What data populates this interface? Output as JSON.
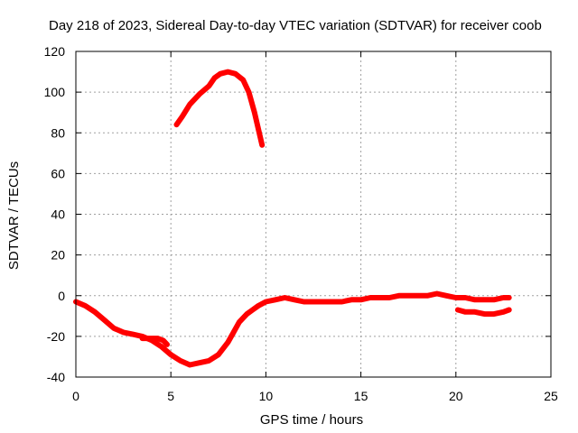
{
  "chart_data": {
    "type": "line",
    "title": "Day 218 of 2023, Sidereal Day-to-day VTEC variation (SDTVAR) for receiver coob",
    "xlabel": "GPS time / hours",
    "ylabel": "SDTVAR / TECUs",
    "xlim": [
      0,
      25
    ],
    "ylim": [
      -40,
      120
    ],
    "xticks": [
      0,
      5,
      10,
      15,
      20,
      25
    ],
    "yticks": [
      -40,
      -20,
      0,
      20,
      40,
      60,
      80,
      100,
      120
    ],
    "grid": true,
    "colors": {
      "series": "#ff0000"
    },
    "series": [
      {
        "name": "SDTVAR main track",
        "x": [
          0,
          0.5,
          1.0,
          1.5,
          2.0,
          2.5,
          3.0,
          3.5,
          4.0,
          4.5,
          5.0,
          5.5,
          6.0,
          6.5,
          7.0,
          7.5,
          8.0,
          8.3,
          8.6,
          9.0,
          9.3,
          9.6,
          10.0,
          10.5,
          11.0,
          11.5,
          12.0,
          12.5,
          13.0,
          13.5,
          14.0,
          14.5,
          15.0,
          15.5,
          16.0,
          16.5,
          17.0,
          17.5,
          18.0,
          18.5,
          19.0,
          19.5,
          20.0,
          20.5,
          21.0,
          21.5,
          22.0,
          22.5,
          22.8
        ],
        "y": [
          -3,
          -5,
          -8,
          -12,
          -16,
          -18,
          -19,
          -20,
          -22,
          -25,
          -29,
          -32,
          -34,
          -33,
          -32,
          -29,
          -23,
          -18,
          -13,
          -9,
          -7,
          -5,
          -3,
          -2,
          -1,
          -2,
          -3,
          -3,
          -3,
          -3,
          -3,
          -2,
          -2,
          -1,
          -1,
          -1,
          0,
          0,
          0,
          0,
          1,
          0,
          -1,
          -1,
          -2,
          -2,
          -2,
          -1,
          -1
        ]
      },
      {
        "name": "SDTVAR dip segment",
        "x": [
          3.5,
          4.0,
          4.3,
          4.6,
          4.8
        ],
        "y": [
          -21,
          -21,
          -21,
          -22,
          -24
        ]
      },
      {
        "name": "SDTVAR upper arc",
        "x": [
          5.3,
          5.6,
          6.0,
          6.5,
          7.0,
          7.3,
          7.6,
          8.0,
          8.4,
          8.8,
          9.1,
          9.4,
          9.7,
          9.8
        ],
        "y": [
          84,
          88,
          94,
          99,
          103,
          107,
          109,
          110,
          109,
          106,
          100,
          90,
          78,
          74
        ]
      },
      {
        "name": "SDTVAR lower tail",
        "x": [
          20.1,
          20.5,
          21.0,
          21.5,
          22.0,
          22.5,
          22.8
        ],
        "y": [
          -7,
          -8,
          -8,
          -9,
          -9,
          -8,
          -7
        ]
      }
    ]
  }
}
